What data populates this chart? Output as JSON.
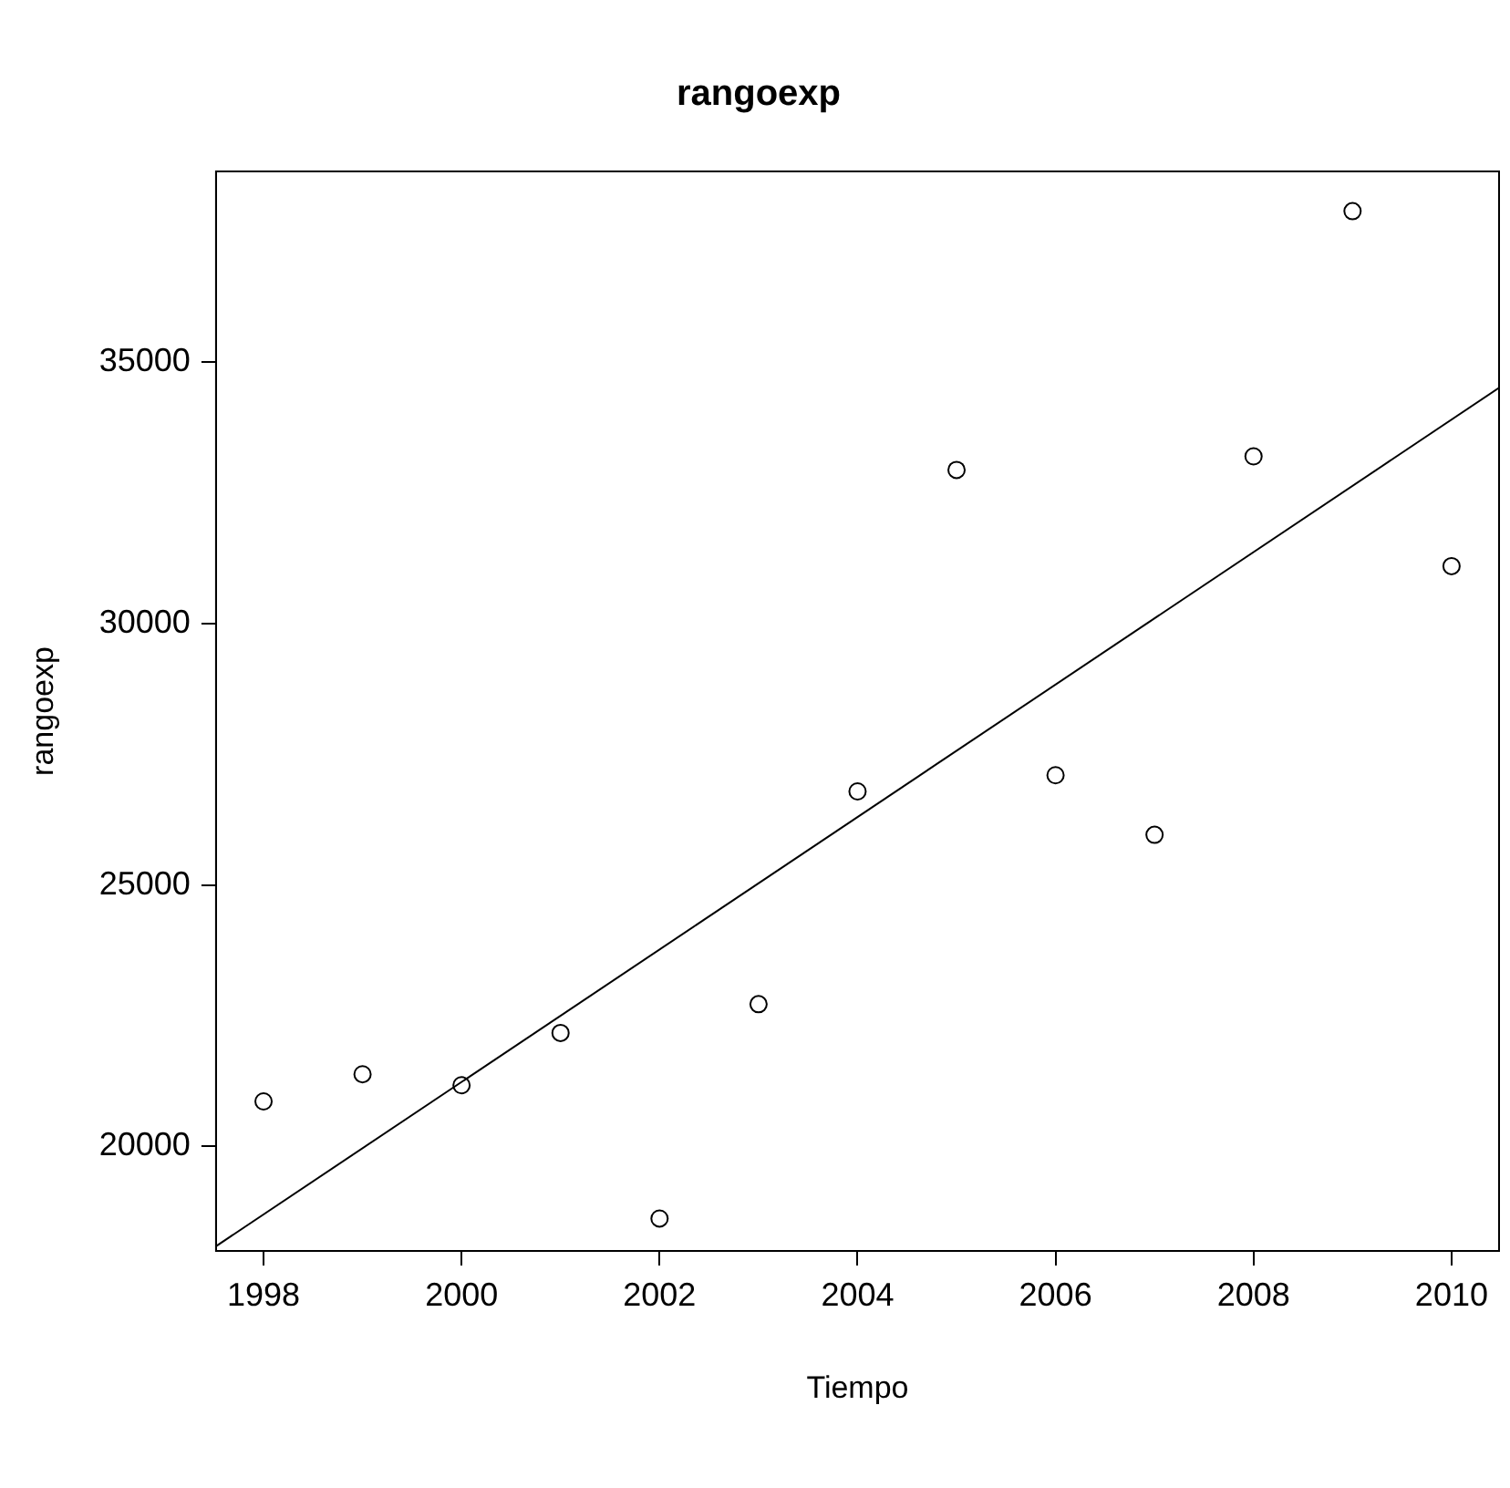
{
  "chart_data": {
    "type": "scatter",
    "title": "rangoexp",
    "xlabel": "Tiempo",
    "ylabel": "rangoexp",
    "x": [
      1998,
      1999,
      2000,
      2001,
      2002,
      2003,
      2004,
      2005,
      2006,
      2007,
      2008,
      2009,
      2010
    ],
    "series": [
      {
        "color": "#000000",
        "values": [
          20860,
          21380,
          21170,
          22170,
          18620,
          22720,
          26790,
          32940,
          27100,
          25960,
          33200,
          37890,
          31100
        ]
      },
      {
        "type": "line",
        "marker": "none",
        "color": "#000000",
        "x": [
          1997.52,
          2010.48
        ],
        "values": [
          18090,
          34510
        ]
      }
    ],
    "marker": "circle",
    "line_style": "solid",
    "xlim": [
      1997.52,
      2010.48
    ],
    "ylim": [
      18000,
      38650
    ],
    "xticks": [
      1998,
      2000,
      2002,
      2004,
      2006,
      2008,
      2010
    ],
    "yticks": [
      20000,
      25000,
      30000,
      35000
    ]
  }
}
